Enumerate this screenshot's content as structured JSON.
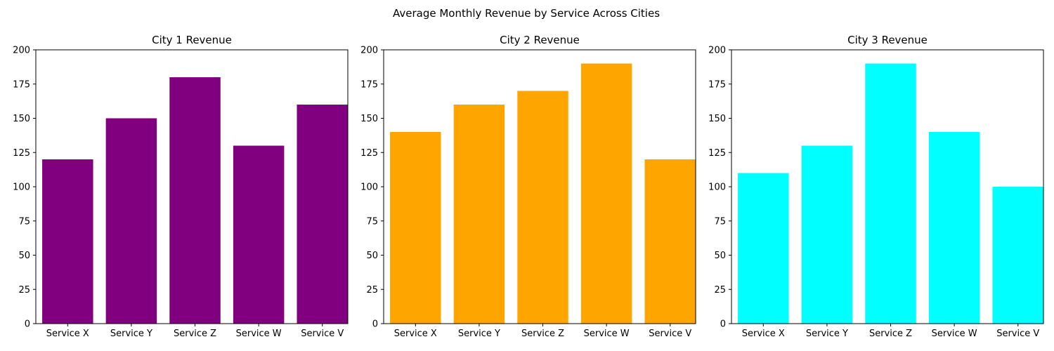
{
  "figure": {
    "title": "Average Monthly Revenue by Service Across Cities"
  },
  "chart_data": [
    {
      "type": "bar",
      "title": "City 1 Revenue",
      "categories": [
        "Service X",
        "Service Y",
        "Service Z",
        "Service W",
        "Service V"
      ],
      "values": [
        120,
        150,
        180,
        130,
        160
      ],
      "color": "#800080",
      "xlabel": "",
      "ylabel": "",
      "ylim": [
        0,
        200
      ],
      "yticks": [
        0,
        25,
        50,
        75,
        100,
        125,
        150,
        175,
        200
      ],
      "grid": false
    },
    {
      "type": "bar",
      "title": "City 2 Revenue",
      "categories": [
        "Service X",
        "Service Y",
        "Service Z",
        "Service W",
        "Service V"
      ],
      "values": [
        140,
        160,
        170,
        190,
        120
      ],
      "color": "#FFA500",
      "xlabel": "",
      "ylabel": "",
      "ylim": [
        0,
        200
      ],
      "yticks": [
        0,
        25,
        50,
        75,
        100,
        125,
        150,
        175,
        200
      ],
      "grid": false
    },
    {
      "type": "bar",
      "title": "City 3 Revenue",
      "categories": [
        "Service X",
        "Service Y",
        "Service Z",
        "Service W",
        "Service V"
      ],
      "values": [
        110,
        130,
        190,
        140,
        100
      ],
      "color": "#00FFFF",
      "xlabel": "",
      "ylabel": "",
      "ylim": [
        0,
        200
      ],
      "yticks": [
        0,
        25,
        50,
        75,
        100,
        125,
        150,
        175,
        200
      ],
      "grid": false
    }
  ]
}
